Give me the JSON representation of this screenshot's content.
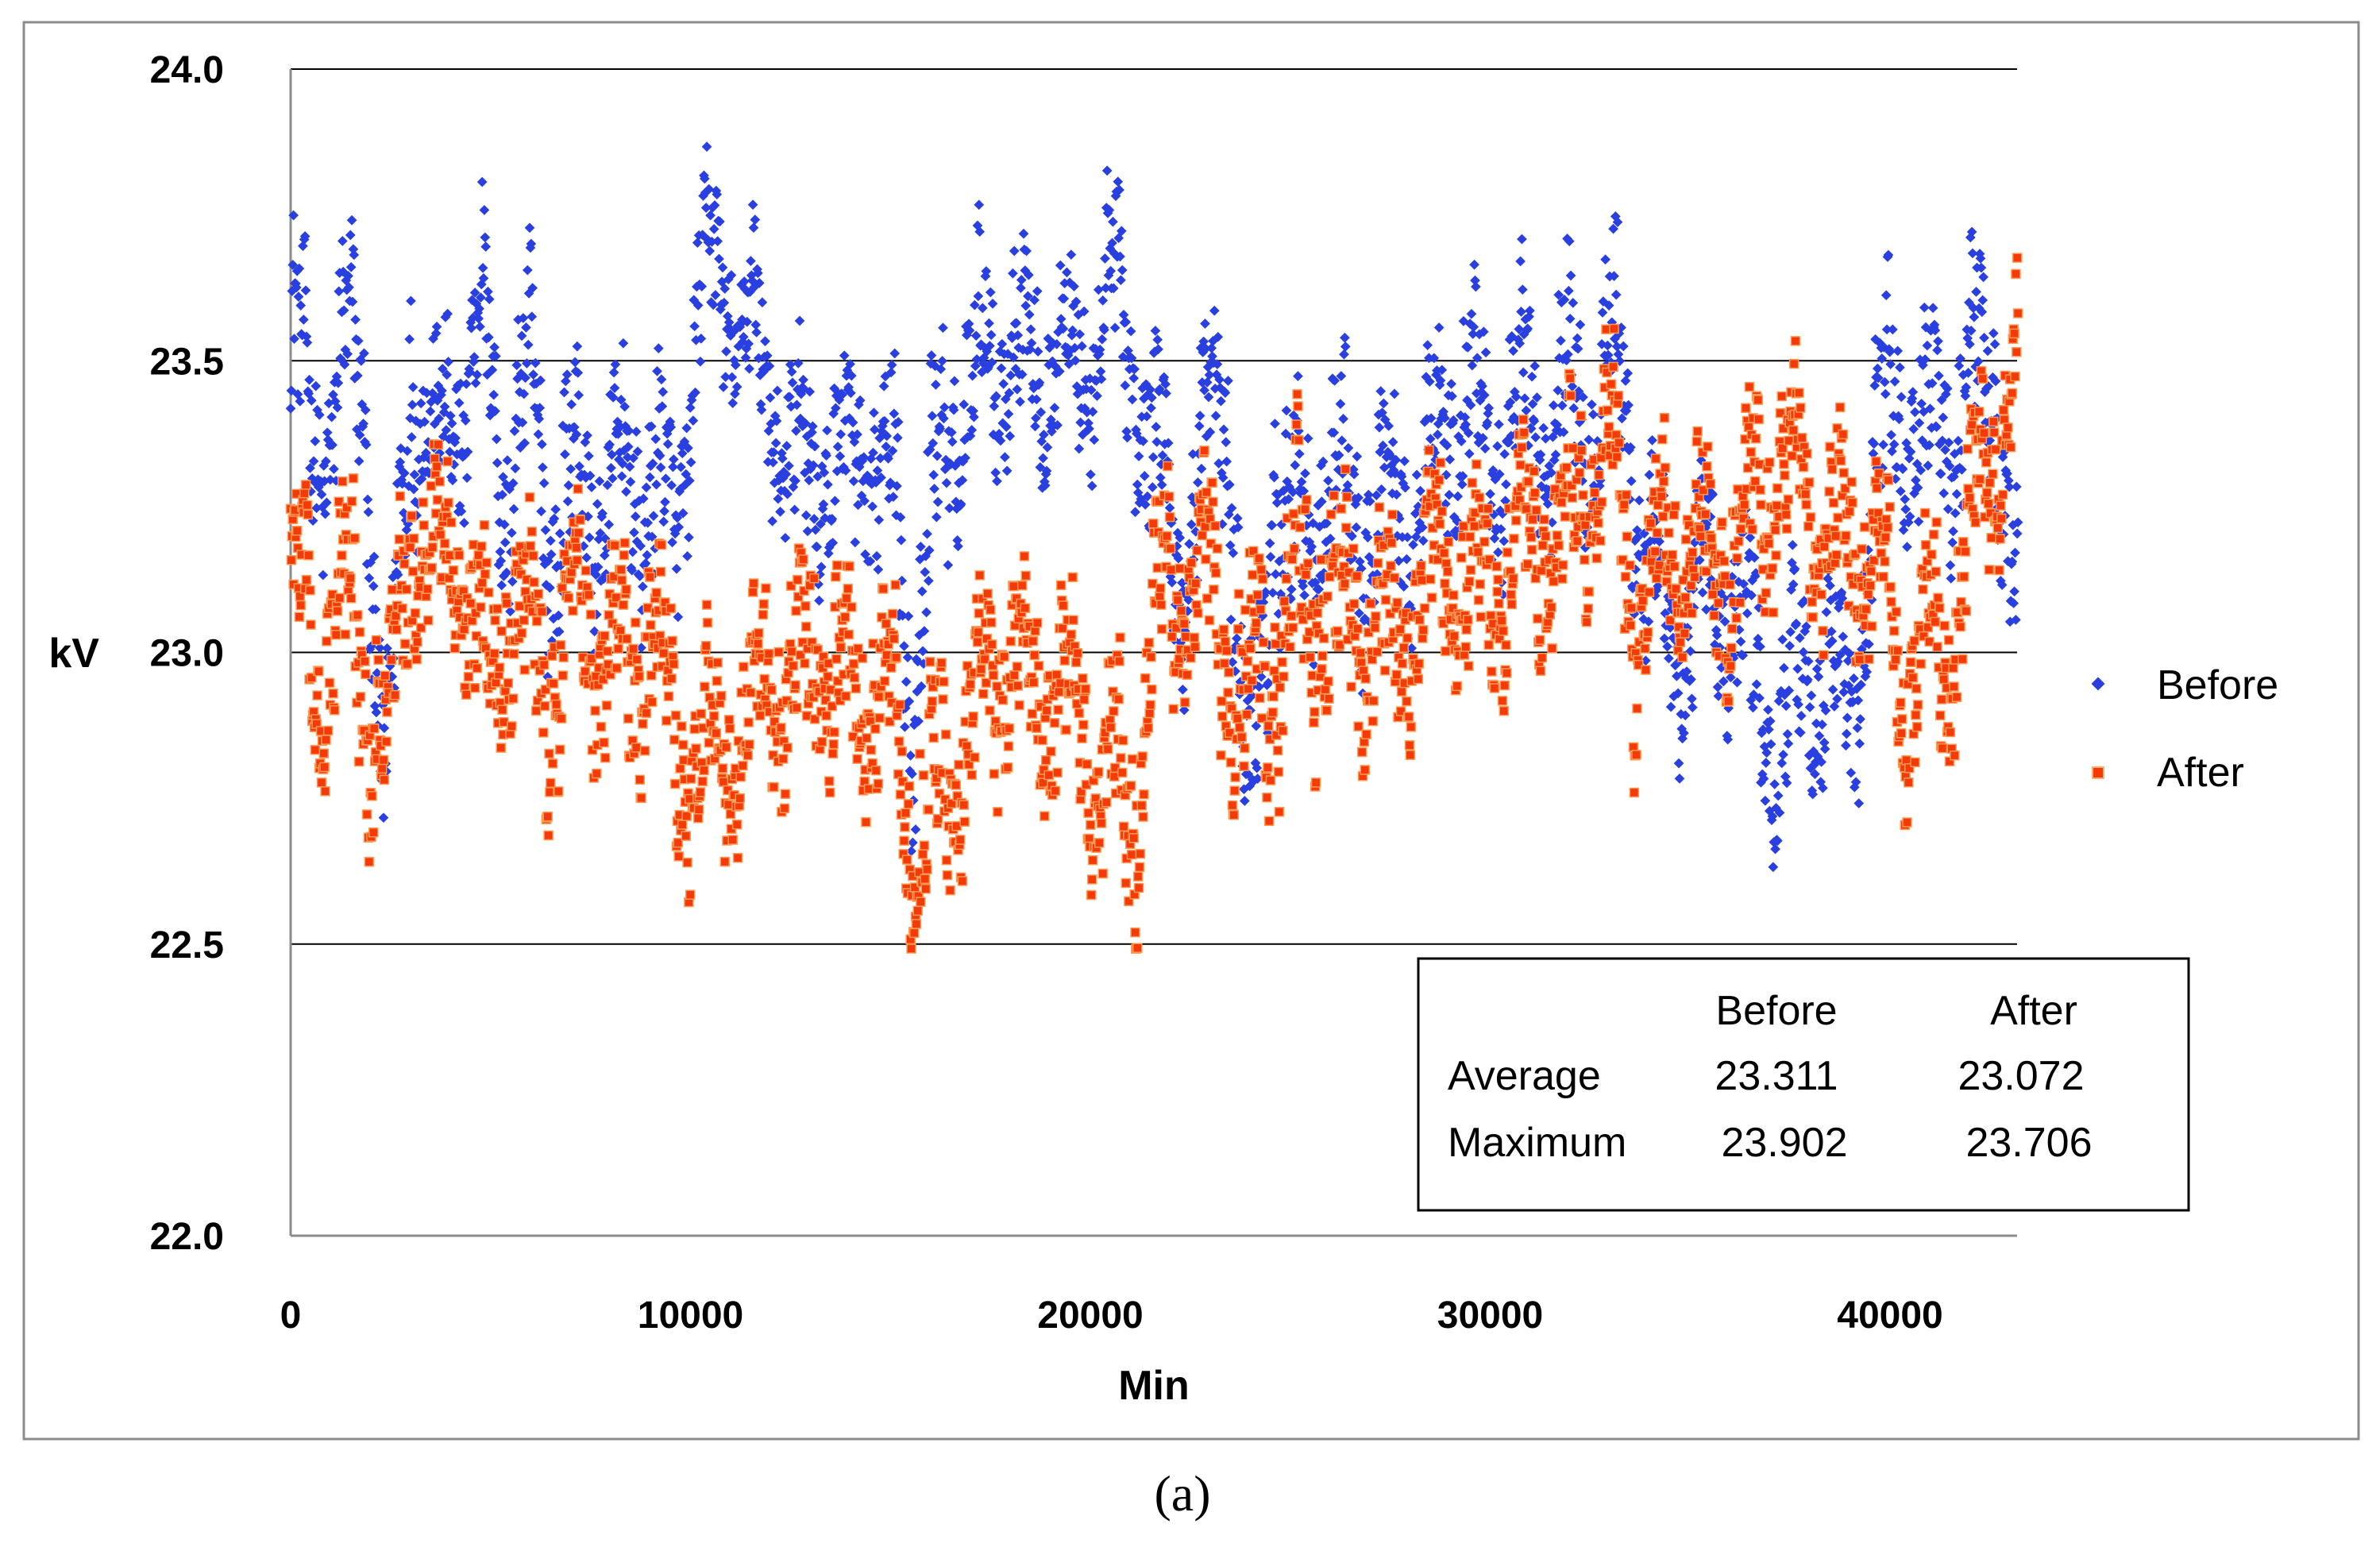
{
  "chart_data": {
    "type": "scatter",
    "title": "",
    "xlabel": "Min",
    "ylabel": "kV",
    "xlim": [
      0,
      43200
    ],
    "ylim": [
      22.0,
      24.0
    ],
    "xticks": [
      0,
      10000,
      20000,
      30000,
      40000
    ],
    "yticks": [
      22.0,
      22.5,
      23.0,
      23.5,
      24.0
    ],
    "ytick_labels": [
      "22.0",
      "22.5",
      "23.0",
      "23.5",
      "24.0"
    ],
    "xtick_labels": [
      "0",
      "10000",
      "20000",
      "30000",
      "40000"
    ],
    "grid": "horizontal",
    "legend_position": "right",
    "series": [
      {
        "name": "Before",
        "color": "#2a3fe0",
        "marker": "diamond",
        "x": [
          0,
          600,
          1200,
          1800,
          2400,
          3000,
          3600,
          4200,
          4800,
          5400,
          6000,
          6600,
          7200,
          7800,
          8400,
          9000,
          9600,
          10200,
          10800,
          11400,
          12000,
          12600,
          13200,
          13800,
          14400,
          15000,
          15600,
          16200,
          16800,
          17400,
          18000,
          18600,
          19200,
          19800,
          20400,
          21000,
          21600,
          22200,
          22800,
          23400,
          24000,
          24600,
          25200,
          25800,
          26400,
          27000,
          27600,
          28200,
          28800,
          29400,
          30000,
          30600,
          31200,
          31800,
          32400,
          33000,
          33600,
          34200,
          34800,
          35400,
          36000,
          36600,
          37200,
          37800,
          38400,
          39000,
          39600,
          40200,
          40800,
          41400,
          42000,
          42600,
          43200
        ],
        "values": [
          23.55,
          23.35,
          23.45,
          23.5,
          22.7,
          23.55,
          23.3,
          23.45,
          23.55,
          23.3,
          23.45,
          23.2,
          23.3,
          23.25,
          23.3,
          23.3,
          23.2,
          23.6,
          23.65,
          23.55,
          23.45,
          23.3,
          23.35,
          23.3,
          23.35,
          23.3,
          22.95,
          23.3,
          23.45,
          23.5,
          23.55,
          23.45,
          23.55,
          23.45,
          23.65,
          23.5,
          23.35,
          23.15,
          23.3,
          23.5,
          22.65,
          23.35,
          23.1,
          23.3,
          23.25,
          23.2,
          23.25,
          23.25,
          23.35,
          23.45,
          23.3,
          23.45,
          23.4,
          23.45,
          23.4,
          23.5,
          23.35,
          23.0,
          23.05,
          23.1,
          23.1,
          22.95,
          22.85,
          22.95,
          23.0,
          22.85,
          23.3,
          23.45,
          23.35,
          23.4,
          23.45,
          23.5,
          23.0
        ],
        "spread": [
          0.25,
          0.2,
          0.25,
          0.22,
          0.25,
          0.25,
          0.2,
          0.25,
          0.2,
          0.25,
          0.22,
          0.25,
          0.2,
          0.22,
          0.2,
          0.25,
          0.2,
          0.22,
          0.2,
          0.2,
          0.22,
          0.2,
          0.22,
          0.22,
          0.2,
          0.25,
          0.3,
          0.25,
          0.22,
          0.22,
          0.2,
          0.22,
          0.22,
          0.2,
          0.2,
          0.22,
          0.22,
          0.22,
          0.25,
          0.25,
          0.3,
          0.25,
          0.28,
          0.22,
          0.22,
          0.22,
          0.22,
          0.22,
          0.22,
          0.25,
          0.22,
          0.22,
          0.22,
          0.22,
          0.22,
          0.25,
          0.25,
          0.25,
          0.22,
          0.22,
          0.22,
          0.25,
          0.22,
          0.22,
          0.2,
          0.22,
          0.25,
          0.25,
          0.22,
          0.22,
          0.25,
          0.22,
          0.22
        ]
      },
      {
        "name": "After",
        "color": "#f53a0a",
        "marker": "square",
        "x": [
          0,
          600,
          1200,
          1800,
          2400,
          3000,
          3600,
          4200,
          4800,
          5400,
          6000,
          6600,
          7200,
          7800,
          8400,
          9000,
          9600,
          10200,
          10800,
          11400,
          12000,
          12600,
          13200,
          13800,
          14400,
          15000,
          15600,
          16200,
          16800,
          17400,
          18000,
          18600,
          19200,
          19800,
          20400,
          21000,
          21600,
          22200,
          22800,
          23400,
          24000,
          24600,
          25200,
          25800,
          26400,
          27000,
          27600,
          28200,
          28800,
          29400,
          30000,
          30600,
          31200,
          31800,
          32400,
          33000,
          33600,
          34200,
          34800,
          35400,
          36000,
          36600,
          37200,
          37800,
          38400,
          39000,
          39600,
          40200,
          40800,
          41400,
          42000,
          42600,
          43200
        ],
        "values": [
          23.15,
          22.95,
          23.1,
          23.0,
          22.85,
          23.2,
          23.15,
          23.2,
          22.95,
          23.1,
          23.0,
          22.95,
          23.1,
          23.0,
          22.95,
          23.05,
          22.85,
          22.8,
          22.85,
          22.85,
          23.0,
          22.9,
          23.05,
          22.9,
          22.95,
          22.9,
          22.7,
          22.75,
          22.85,
          22.9,
          23.05,
          22.9,
          22.95,
          22.85,
          22.8,
          22.7,
          23.05,
          23.1,
          23.15,
          23.0,
          22.9,
          23.0,
          23.05,
          23.1,
          23.05,
          23.05,
          23.0,
          23.1,
          23.15,
          23.1,
          23.1,
          23.15,
          23.2,
          23.2,
          23.3,
          23.35,
          23.05,
          23.15,
          23.2,
          23.15,
          23.15,
          23.25,
          23.3,
          23.3,
          23.2,
          23.15,
          23.2,
          22.95,
          23.0,
          23.0,
          23.2,
          23.35,
          23.5
        ],
        "spread": [
          0.2,
          0.25,
          0.22,
          0.25,
          0.25,
          0.18,
          0.18,
          0.2,
          0.22,
          0.2,
          0.2,
          0.22,
          0.2,
          0.2,
          0.22,
          0.22,
          0.2,
          0.2,
          0.2,
          0.2,
          0.2,
          0.22,
          0.22,
          0.22,
          0.2,
          0.22,
          0.25,
          0.22,
          0.22,
          0.22,
          0.22,
          0.22,
          0.2,
          0.22,
          0.25,
          0.25,
          0.22,
          0.22,
          0.22,
          0.22,
          0.3,
          0.25,
          0.3,
          0.25,
          0.25,
          0.22,
          0.2,
          0.2,
          0.2,
          0.2,
          0.2,
          0.2,
          0.2,
          0.2,
          0.2,
          0.22,
          0.22,
          0.22,
          0.2,
          0.2,
          0.22,
          0.22,
          0.2,
          0.2,
          0.2,
          0.2,
          0.2,
          0.22,
          0.22,
          0.22,
          0.2,
          0.2,
          0.15
        ]
      }
    ],
    "stats_table": {
      "headers": [
        "",
        "Before",
        "After"
      ],
      "rows": [
        {
          "label": "Average",
          "before": "23.311",
          "after": "23.072"
        },
        {
          "label": "Maximum",
          "before": "23.902",
          "after": "23.706"
        }
      ]
    }
  },
  "caption": "(a)"
}
